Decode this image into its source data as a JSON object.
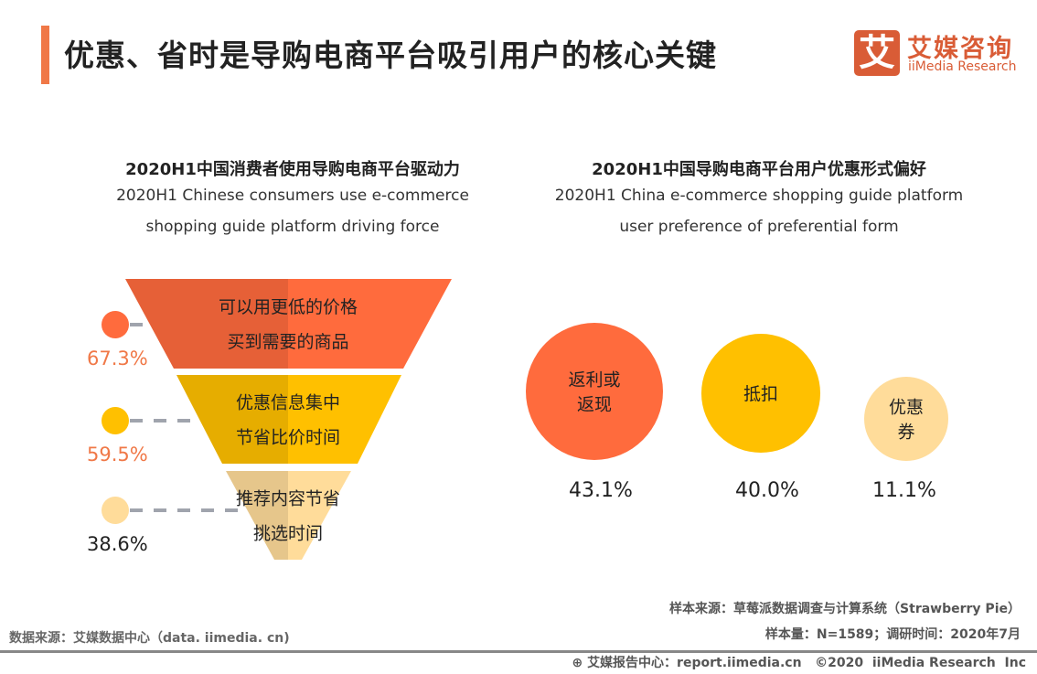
{
  "header": {
    "title": "优惠、省时是导购电商平台吸引用户的核心关键",
    "logo_cn": "艾媒咨询",
    "logo_en": "iiMedia Research",
    "logo_mark": "艾"
  },
  "left_chart": {
    "title_cn": "2020H1中国消费者使用导购电商平台驱动力",
    "title_en_1": "2020H1 Chinese consumers use e-commerce",
    "title_en_2": "shopping guide platform driving force"
  },
  "right_chart": {
    "title_cn": "2020H1中国导购电商平台用户优惠形式偏好",
    "title_en_1": "2020H1 China e-commerce shopping guide platform",
    "title_en_2": "user preference of preferential form"
  },
  "chart_data": [
    {
      "type": "funnel",
      "categories": [
        [
          "可以用更低的价格",
          "买到需要的商品"
        ],
        [
          "优惠信息集中",
          "节省比价时间"
        ],
        [
          "推荐内容节省",
          "挑选时间"
        ]
      ],
      "values": [
        67.3,
        59.5,
        38.6
      ],
      "labels": [
        "67.3%",
        "59.5%",
        "38.6%"
      ],
      "colors": [
        "#ff6b3d",
        "#ffc000",
        "#ffdc9a"
      ]
    },
    {
      "type": "bubble",
      "categories": [
        [
          "返利或",
          "返现"
        ],
        [
          "抵扣"
        ],
        [
          "优惠",
          "券"
        ]
      ],
      "values": [
        43.1,
        40.0,
        11.1
      ],
      "labels": [
        "43.1%",
        "40.0%",
        "11.1%"
      ],
      "colors": [
        "#ff6b3d",
        "#ffc000",
        "#ffdc9a"
      ]
    }
  ],
  "footer": {
    "sample_source": "样本来源：草莓派数据调查与计算系统（Strawberry Pie）",
    "sample_size": "样本量：N=1589；调研时间：2020年7月",
    "data_source": "数据来源：艾媒数据中心（data. iimedia. cn)",
    "copyright": "艾媒报告中心：report.iimedia.cn   ©2020  iiMedia Research  Inc"
  }
}
